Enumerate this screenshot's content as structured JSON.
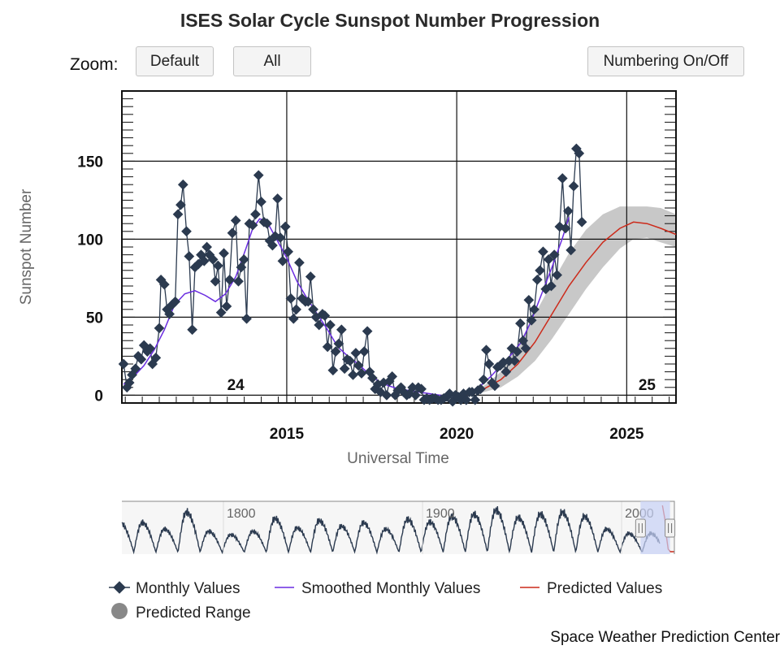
{
  "toolbar": {
    "zoom_label": "Zoom:",
    "default_label": "Default",
    "all_label": "All",
    "numbering_label": "Numbering On/Off"
  },
  "footer": {
    "credit": "Space Weather Prediction Center"
  },
  "colors": {
    "monthly": "#2b3a4f",
    "smoothed": "#6a2ce0",
    "predicted": "#cc2a1a",
    "range": "#c8c8c8",
    "navigator_selection": "#c7d1f7"
  },
  "chart_data": {
    "type": "line",
    "title": "ISES Solar Cycle Sunspot Number Progression",
    "xlabel": "Universal Time",
    "ylabel": "Sunspot Number",
    "xlim": [
      2010.15,
      2026.45
    ],
    "ylim": [
      -5,
      195
    ],
    "x_ticks": [
      2015,
      2020,
      2025
    ],
    "y_ticks": [
      0,
      50,
      100,
      150
    ],
    "grid": true,
    "cycle_labels": [
      {
        "text": "24",
        "x": 2013.5,
        "y": 7
      },
      {
        "text": "25",
        "x": 2025.6,
        "y": 7
      }
    ],
    "series": [
      {
        "name": "Monthly Values",
        "values": [
          [
            2010.2,
            20
          ],
          [
            2010.3,
            5
          ],
          [
            2010.37,
            8
          ],
          [
            2010.45,
            13
          ],
          [
            2010.55,
            17
          ],
          [
            2010.63,
            25
          ],
          [
            2010.72,
            23
          ],
          [
            2010.8,
            32
          ],
          [
            2010.9,
            28
          ],
          [
            2010.98,
            30
          ],
          [
            2011.05,
            20
          ],
          [
            2011.15,
            24
          ],
          [
            2011.25,
            43
          ],
          [
            2011.3,
            74
          ],
          [
            2011.4,
            71
          ],
          [
            2011.48,
            55
          ],
          [
            2011.55,
            52
          ],
          [
            2011.63,
            58
          ],
          [
            2011.72,
            60
          ],
          [
            2011.8,
            116
          ],
          [
            2011.88,
            122
          ],
          [
            2011.95,
            135
          ],
          [
            2012.05,
            105
          ],
          [
            2012.13,
            89
          ],
          [
            2012.22,
            42
          ],
          [
            2012.3,
            82
          ],
          [
            2012.4,
            84
          ],
          [
            2012.48,
            90
          ],
          [
            2012.57,
            86
          ],
          [
            2012.65,
            95
          ],
          [
            2012.73,
            90
          ],
          [
            2012.83,
            87
          ],
          [
            2012.9,
            73
          ],
          [
            2012.98,
            83
          ],
          [
            2013.07,
            53
          ],
          [
            2013.15,
            91
          ],
          [
            2013.23,
            57
          ],
          [
            2013.32,
            74
          ],
          [
            2013.4,
            104
          ],
          [
            2013.5,
            112
          ],
          [
            2013.58,
            73
          ],
          [
            2013.66,
            82
          ],
          [
            2013.74,
            87
          ],
          [
            2013.82,
            49
          ],
          [
            2013.9,
            110
          ],
          [
            2014.0,
            109
          ],
          [
            2014.08,
            116
          ],
          [
            2014.17,
            141
          ],
          [
            2014.25,
            124
          ],
          [
            2014.33,
            111
          ],
          [
            2014.42,
            110
          ],
          [
            2014.5,
            99
          ],
          [
            2014.58,
            96
          ],
          [
            2014.66,
            102
          ],
          [
            2014.73,
            126
          ],
          [
            2014.81,
            101
          ],
          [
            2014.88,
            86
          ],
          [
            2014.96,
            108
          ],
          [
            2015.04,
            92
          ],
          [
            2015.12,
            62
          ],
          [
            2015.2,
            49
          ],
          [
            2015.28,
            55
          ],
          [
            2015.37,
            85
          ],
          [
            2015.45,
            62
          ],
          [
            2015.55,
            60
          ],
          [
            2015.63,
            60
          ],
          [
            2015.7,
            76
          ],
          [
            2015.78,
            55
          ],
          [
            2015.86,
            50
          ],
          [
            2015.95,
            45
          ],
          [
            2016.05,
            52
          ],
          [
            2016.12,
            51
          ],
          [
            2016.2,
            31
          ],
          [
            2016.28,
            45
          ],
          [
            2016.36,
            16
          ],
          [
            2016.44,
            28
          ],
          [
            2016.53,
            33
          ],
          [
            2016.61,
            42
          ],
          [
            2016.7,
            17
          ],
          [
            2016.78,
            23
          ],
          [
            2016.86,
            22
          ],
          [
            2016.95,
            13
          ],
          [
            2017.03,
            27
          ],
          [
            2017.11,
            19
          ],
          [
            2017.2,
            14
          ],
          [
            2017.28,
            28
          ],
          [
            2017.37,
            41
          ],
          [
            2017.44,
            15
          ],
          [
            2017.52,
            11
          ],
          [
            2017.6,
            4
          ],
          [
            2017.68,
            7
          ],
          [
            2017.76,
            2
          ],
          [
            2017.85,
            8
          ],
          [
            2017.94,
            0
          ],
          [
            2018.02,
            9
          ],
          [
            2018.1,
            12
          ],
          [
            2018.19,
            0
          ],
          [
            2018.27,
            3
          ],
          [
            2018.36,
            5
          ],
          [
            2018.44,
            2
          ],
          [
            2018.53,
            0
          ],
          [
            2018.61,
            1
          ],
          [
            2018.7,
            5
          ],
          [
            2018.79,
            0
          ],
          [
            2018.87,
            5
          ],
          [
            2018.96,
            4
          ],
          [
            2019.04,
            -3
          ],
          [
            2019.12,
            -2
          ],
          [
            2019.2,
            -3
          ],
          [
            2019.29,
            -2
          ],
          [
            2019.37,
            -2
          ],
          [
            2019.45,
            -3
          ],
          [
            2019.54,
            -3
          ],
          [
            2019.62,
            -2
          ],
          [
            2019.71,
            -1
          ],
          [
            2019.79,
            1
          ],
          [
            2019.88,
            -4
          ],
          [
            2019.96,
            0
          ],
          [
            2020.04,
            -1
          ],
          [
            2020.12,
            -3
          ],
          [
            2020.2,
            1
          ],
          [
            2020.28,
            -3
          ],
          [
            2020.37,
            2
          ],
          [
            2020.45,
            2
          ],
          [
            2020.54,
            -3
          ],
          [
            2020.62,
            3
          ],
          [
            2020.7,
            4
          ],
          [
            2020.79,
            10
          ],
          [
            2020.87,
            29
          ],
          [
            2020.95,
            20
          ],
          [
            2021.04,
            8
          ],
          [
            2021.12,
            6
          ],
          [
            2021.2,
            18
          ],
          [
            2021.28,
            19
          ],
          [
            2021.37,
            21
          ],
          [
            2021.45,
            15
          ],
          [
            2021.54,
            22
          ],
          [
            2021.62,
            30
          ],
          [
            2021.7,
            22
          ],
          [
            2021.78,
            28
          ],
          [
            2021.87,
            46
          ],
          [
            2021.95,
            35
          ],
          [
            2022.03,
            30
          ],
          [
            2022.12,
            61
          ],
          [
            2022.2,
            48
          ],
          [
            2022.28,
            55
          ],
          [
            2022.37,
            74
          ],
          [
            2022.45,
            80
          ],
          [
            2022.54,
            92
          ],
          [
            2022.62,
            68
          ],
          [
            2022.7,
            87
          ],
          [
            2022.78,
            70
          ],
          [
            2022.87,
            90
          ],
          [
            2022.95,
            77
          ],
          [
            2023.03,
            108
          ],
          [
            2023.11,
            139
          ],
          [
            2023.2,
            107
          ],
          [
            2023.28,
            118
          ],
          [
            2023.36,
            93
          ],
          [
            2023.44,
            134
          ],
          [
            2023.52,
            158
          ],
          [
            2023.6,
            155
          ],
          [
            2023.68,
            111
          ]
        ]
      },
      {
        "name": "Smoothed Monthly Values",
        "values": [
          [
            2010.2,
            7
          ],
          [
            2010.5,
            12
          ],
          [
            2010.8,
            19
          ],
          [
            2011.1,
            29
          ],
          [
            2011.4,
            42
          ],
          [
            2011.7,
            58
          ],
          [
            2012.0,
            65
          ],
          [
            2012.3,
            67
          ],
          [
            2012.6,
            64
          ],
          [
            2012.9,
            60
          ],
          [
            2013.2,
            65
          ],
          [
            2013.5,
            76
          ],
          [
            2013.8,
            94
          ],
          [
            2014.0,
            107
          ],
          [
            2014.2,
            113
          ],
          [
            2014.4,
            112
          ],
          [
            2014.7,
            100
          ],
          [
            2015.0,
            88
          ],
          [
            2015.3,
            73
          ],
          [
            2015.6,
            62
          ],
          [
            2015.9,
            52
          ],
          [
            2016.2,
            42
          ],
          [
            2016.5,
            31
          ],
          [
            2016.8,
            25
          ],
          [
            2017.1,
            20
          ],
          [
            2017.4,
            14
          ],
          [
            2017.7,
            9
          ],
          [
            2018.0,
            6
          ],
          [
            2018.3,
            4
          ],
          [
            2018.6,
            3
          ],
          [
            2018.9,
            2
          ],
          [
            2019.2,
            1
          ],
          [
            2019.5,
            0
          ],
          [
            2019.8,
            -1
          ],
          [
            2020.1,
            0
          ],
          [
            2020.4,
            2
          ],
          [
            2020.7,
            6
          ],
          [
            2021.0,
            12
          ],
          [
            2021.3,
            19
          ],
          [
            2021.6,
            26
          ],
          [
            2021.9,
            34
          ],
          [
            2022.2,
            48
          ],
          [
            2022.5,
            65
          ],
          [
            2022.8,
            82
          ],
          [
            2023.1,
            100
          ],
          [
            2023.3,
            114
          ]
        ]
      },
      {
        "name": "Predicted Values",
        "values": [
          [
            2020.3,
            0
          ],
          [
            2020.8,
            4
          ],
          [
            2021.3,
            10
          ],
          [
            2021.8,
            20
          ],
          [
            2022.3,
            34
          ],
          [
            2022.8,
            52
          ],
          [
            2023.3,
            70
          ],
          [
            2023.8,
            85
          ],
          [
            2024.3,
            98
          ],
          [
            2024.8,
            107
          ],
          [
            2025.2,
            111
          ],
          [
            2025.6,
            110
          ],
          [
            2026.0,
            107
          ],
          [
            2026.45,
            103
          ]
        ]
      },
      {
        "name": "Predicted Range",
        "values": [
          [
            2020.3,
            0,
            2
          ],
          [
            2020.8,
            2,
            6
          ],
          [
            2021.3,
            5,
            15
          ],
          [
            2021.8,
            12,
            32
          ],
          [
            2022.3,
            22,
            52
          ],
          [
            2022.8,
            36,
            72
          ],
          [
            2023.3,
            52,
            91
          ],
          [
            2023.8,
            68,
            106
          ],
          [
            2024.3,
            82,
            116
          ],
          [
            2024.8,
            94,
            121
          ],
          [
            2025.2,
            100,
            121
          ],
          [
            2025.6,
            101,
            121
          ],
          [
            2026.0,
            98,
            120
          ],
          [
            2026.45,
            95,
            116
          ]
        ]
      }
    ],
    "navigator": {
      "xlim": [
        1749,
        2026.5
      ],
      "selection": [
        2009.5,
        2024.3
      ],
      "labels": [
        "1800",
        "1900",
        "2000"
      ],
      "label_x": [
        1800,
        1900,
        2000
      ]
    },
    "legend": [
      "Monthly Values",
      "Smoothed Monthly Values",
      "Predicted Values",
      "Predicted Range"
    ],
    "legend_position": "bottom"
  }
}
